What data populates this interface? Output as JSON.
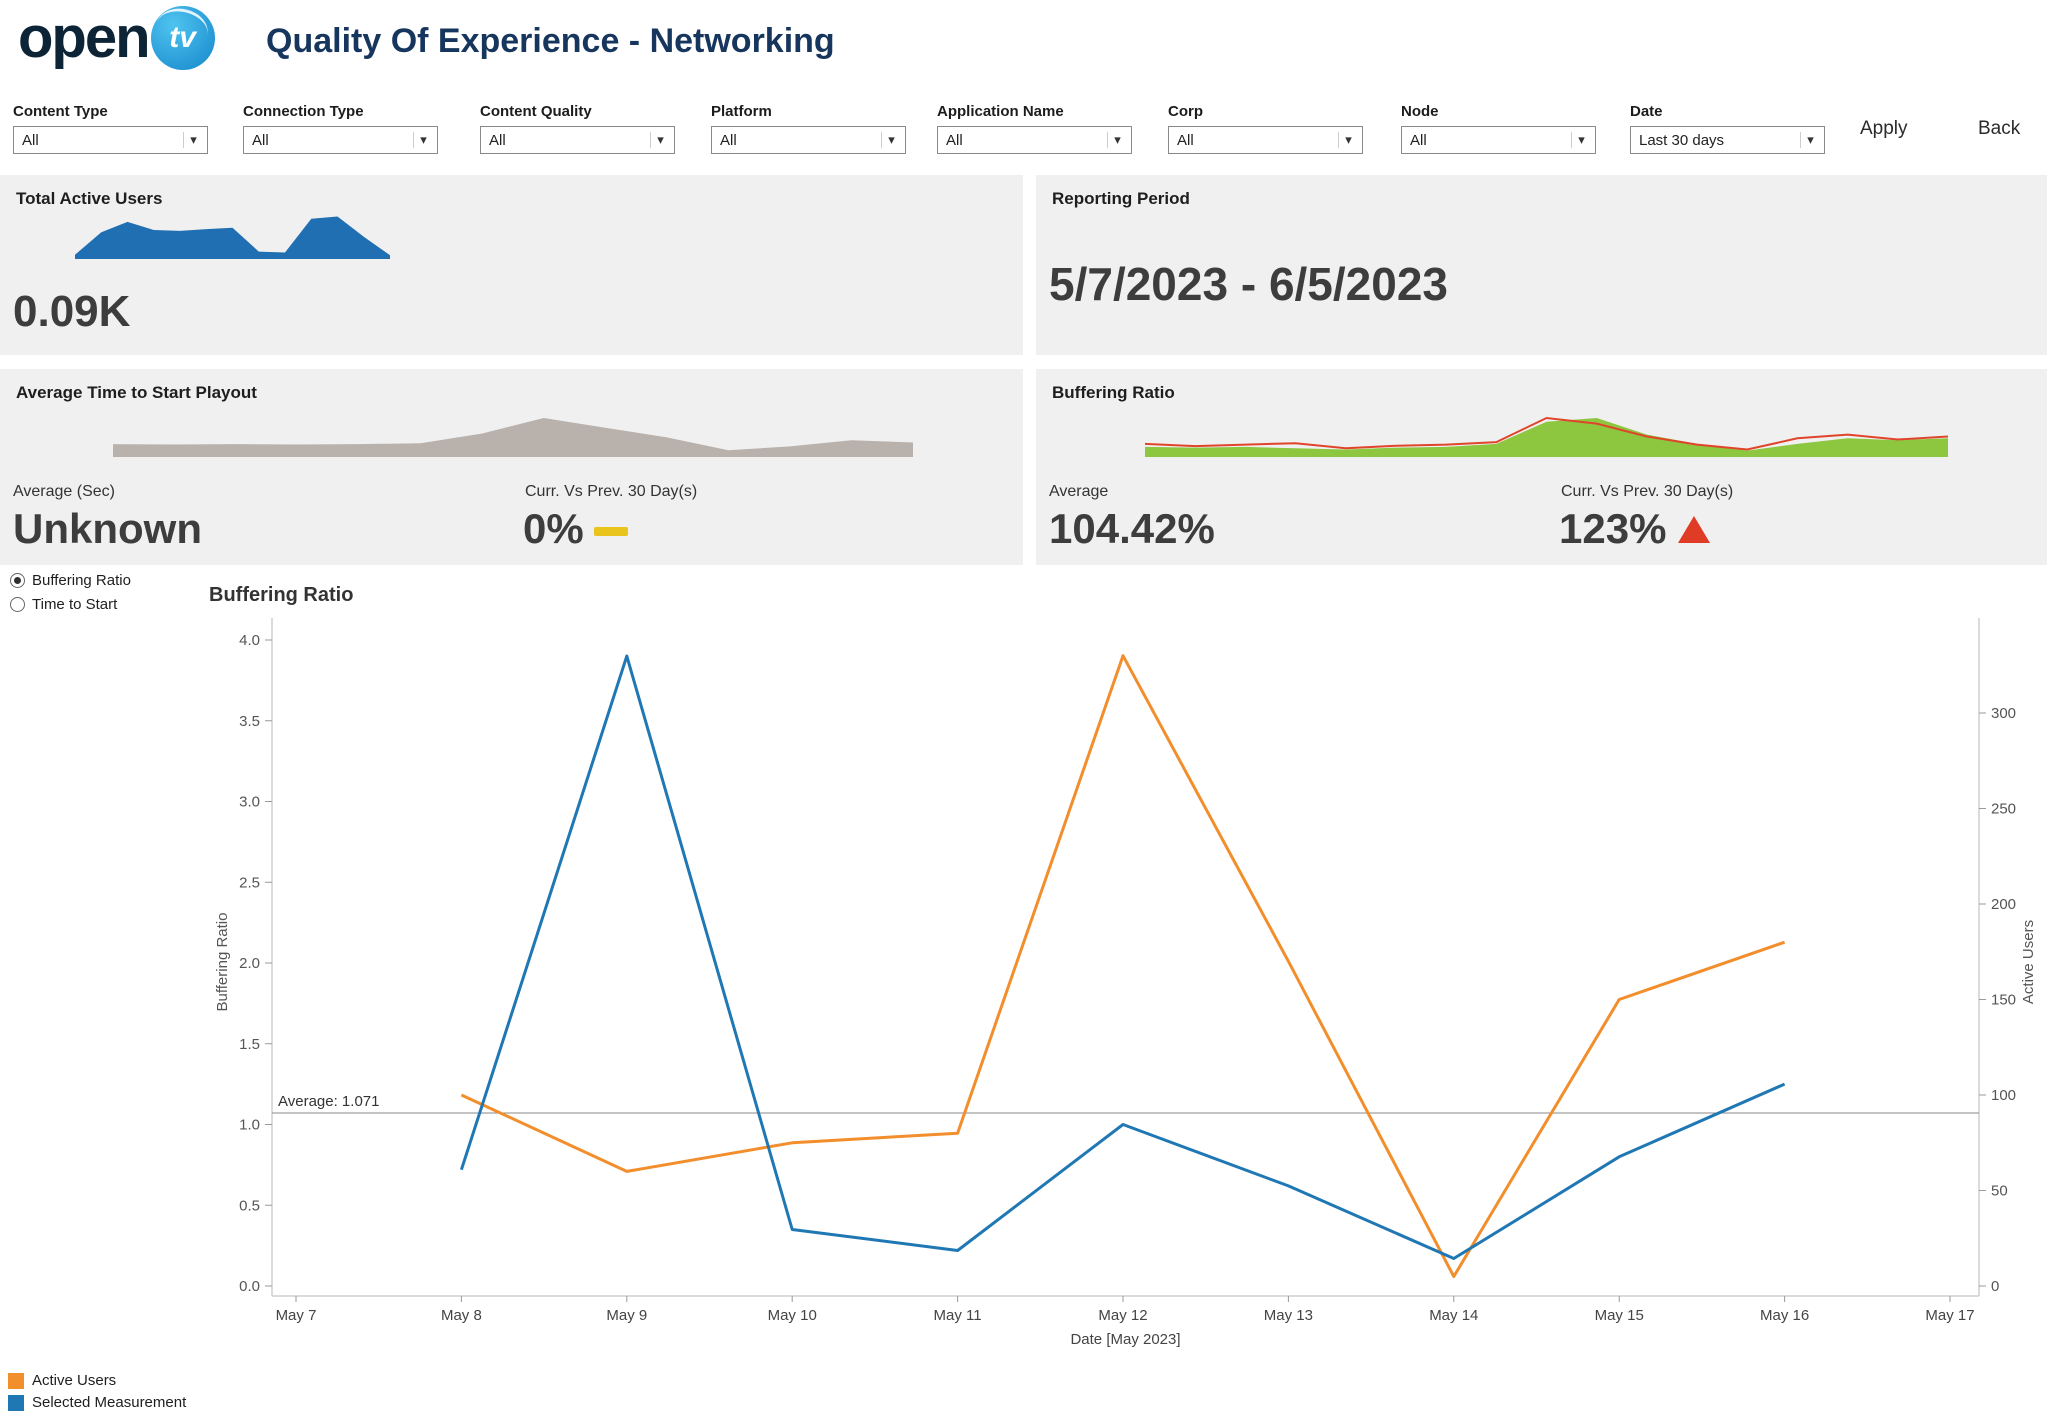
{
  "header": {
    "logo_open": "open",
    "logo_tv": "tv",
    "title": "Quality Of Experience - Networking"
  },
  "filters": [
    {
      "label": "Content Type",
      "value": "All"
    },
    {
      "label": "Connection Type",
      "value": "All"
    },
    {
      "label": "Content Quality",
      "value": "All"
    },
    {
      "label": "Platform",
      "value": "All"
    },
    {
      "label": "Application Name",
      "value": "All"
    },
    {
      "label": "Corp",
      "value": "All"
    },
    {
      "label": "Node",
      "value": "All"
    },
    {
      "label": "Date",
      "value": "Last 30 days"
    }
  ],
  "actions": {
    "apply": "Apply",
    "back": "Back"
  },
  "kpis": {
    "active_users": {
      "title": "Total Active Users",
      "value": "0.09K"
    },
    "reporting_period": {
      "title": "Reporting Period",
      "value": "5/7/2023 - 6/5/2023"
    },
    "time_to_start": {
      "title": "Average Time to Start Playout",
      "avg_label": "Average (Sec)",
      "avg_value": "Unknown",
      "delta_label": "Curr. Vs Prev. 30 Day(s)",
      "delta_value": "0%",
      "delta_direction": "neutral"
    },
    "buffering": {
      "title": "Buffering Ratio",
      "avg_label": "Average",
      "avg_value": "104.42%",
      "delta_label": "Curr. Vs Prev. 30 Day(s)",
      "delta_value": "123%",
      "delta_direction": "up"
    }
  },
  "measurement_toggle": {
    "options": [
      {
        "label": "Buffering Ratio",
        "selected": true
      },
      {
        "label": "Time to Start",
        "selected": false
      }
    ]
  },
  "chart_data": {
    "type": "line",
    "title": "Buffering Ratio",
    "xlabel": "Date [May 2023]",
    "x_axis_ticks": [
      "May 7",
      "May 8",
      "May 9",
      "May 10",
      "May 11",
      "May 12",
      "May 13",
      "May 14",
      "May 15",
      "May 16",
      "May 17"
    ],
    "x": [
      "May 8",
      "May 9",
      "May 10",
      "May 11",
      "May 12",
      "May 13",
      "May 14",
      "May 15",
      "May 16"
    ],
    "left_axis": {
      "label": "Buffering Ratio",
      "min": 0,
      "max": 4,
      "ticks": [
        "0.0",
        "0.5",
        "1.0",
        "1.5",
        "2.0",
        "2.5",
        "3.0",
        "3.5",
        "4.0"
      ]
    },
    "right_axis": {
      "label": "Active Users",
      "min": 0,
      "ticks": [
        0,
        50,
        100,
        150,
        200,
        250,
        300
      ]
    },
    "series": [
      {
        "name": "Active Users",
        "axis": "right",
        "color": "#f28e2b",
        "values": [
          100,
          60,
          75,
          80,
          330,
          170,
          5,
          150,
          180
        ]
      },
      {
        "name": "Selected Measurement",
        "axis": "left",
        "color": "#1f77b4",
        "values": [
          0.72,
          3.9,
          0.35,
          0.22,
          1.0,
          0.62,
          0.17,
          0.8,
          1.25
        ]
      }
    ],
    "average_line": {
      "label": "Average: 1.071",
      "value": 1.071,
      "axis": "left"
    },
    "grid": "off",
    "legend_position": "bottom-left"
  },
  "legend": [
    {
      "label": "Active Users",
      "color": "#f28e2b"
    },
    {
      "label": "Selected Measurement",
      "color": "#1f77b4"
    }
  ],
  "sparklines": {
    "active_users": [
      0.05,
      0.55,
      0.78,
      0.6,
      0.58,
      0.62,
      0.65,
      0.12,
      0.1,
      0.85,
      0.9,
      0.45,
      0.04
    ],
    "time_to_start": [
      0.28,
      0.27,
      0.28,
      0.27,
      0.28,
      0.3,
      0.55,
      0.95,
      0.7,
      0.45,
      0.12,
      0.22,
      0.38,
      0.32
    ],
    "buffering_green": [
      0.22,
      0.2,
      0.22,
      0.18,
      0.15,
      0.2,
      0.22,
      0.3,
      0.9,
      1.0,
      0.55,
      0.3,
      0.12,
      0.3,
      0.45,
      0.4,
      0.45
    ],
    "buffering_red": [
      0.3,
      0.24,
      0.28,
      0.32,
      0.18,
      0.25,
      0.28,
      0.35,
      1.0,
      0.85,
      0.5,
      0.28,
      0.15,
      0.45,
      0.55,
      0.42,
      0.5
    ]
  },
  "colors": {
    "title_navy": "#17365d",
    "card_bg": "#f0f0f0",
    "orange": "#f28e2b",
    "blue": "#1f77b4",
    "spark_blue": "#1f6fb2",
    "spark_gray": "#b9b1ab",
    "spark_green": "#8dc63f",
    "spark_red": "#e0442a",
    "delta_yellow": "#e8c41c",
    "delta_red": "#e03b24"
  }
}
